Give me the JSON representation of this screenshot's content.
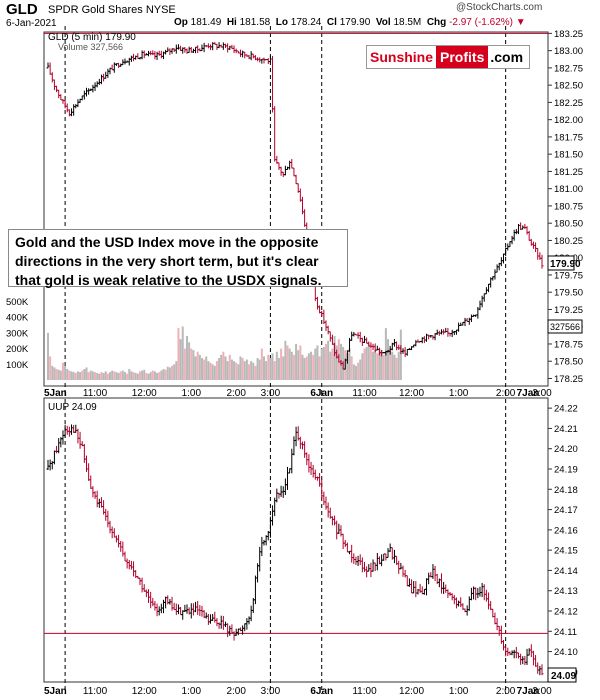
{
  "header": {
    "ticker": "GLD",
    "description": "SPDR Gold Shares NYSE",
    "date": "6-Jan-2021",
    "open_label": "Op",
    "open": "181.49",
    "high_label": "Hi",
    "high": "181.58",
    "low_label": "Lo",
    "low": "178.24",
    "close_label": "Cl",
    "close": "179.90",
    "volume_label": "Vol",
    "volume": "18.5M",
    "change_label": "Chg",
    "change": "-2.97 (-1.62%)",
    "watermark": "@StockCharts.com"
  },
  "brand": {
    "part1": "Sunshine",
    "part2": "Profits",
    "part3": ".com"
  },
  "annotation": {
    "lines": [
      "Gold and the USD Index move in the opposite",
      "directions in the very short term, but it's clear",
      "that gold is weak relative to the USDX signals."
    ]
  },
  "colors": {
    "up": "#000000",
    "down": "#b0002a",
    "vol_up": "#b9b9b9",
    "vol_down": "#f0b0b8",
    "resistance": "#c0002a"
  },
  "chart_data": [
    {
      "type": "bar",
      "title": "GLD (5 min) 179.90",
      "legend": [
        "GLD (5 min) 179.90",
        "Volume 327,566"
      ],
      "x_ticks": [
        "5Jan",
        "11:00",
        "12:00",
        "1:00",
        "2:00",
        "3:00",
        "6Jan",
        "11:00",
        "12:00",
        "1:00",
        "2:00",
        "3:00",
        "7Jan"
      ],
      "y_ticks": [
        "183.25",
        "183.00",
        "182.75",
        "182.50",
        "182.25",
        "182.00",
        "181.75",
        "181.50",
        "181.25",
        "181.00",
        "180.75",
        "180.50",
        "180.25",
        "180.00",
        "179.75",
        "179.50",
        "179.25",
        "179.00",
        "178.75",
        "178.50",
        "178.25"
      ],
      "ylim": [
        178.17,
        183.27
      ],
      "volume_ticks": [
        "500K",
        "400K",
        "300K",
        "200K",
        "100K"
      ],
      "last_price": "179.90",
      "last_volume": "327566",
      "horizontal_line": 183.25,
      "series": [
        {
          "name": "GLD (5 min) 179.90",
          "path": [
            [
              0,
              182.75
            ],
            [
              3,
              182.5
            ],
            [
              6,
              182.3
            ],
            [
              10,
              182.1
            ],
            [
              15,
              182.3
            ],
            [
              20,
              182.45
            ],
            [
              25,
              182.6
            ],
            [
              30,
              182.75
            ],
            [
              35,
              182.85
            ],
            [
              40,
              182.9
            ],
            [
              45,
              182.95
            ],
            [
              50,
              182.92
            ],
            [
              55,
              182.97
            ],
            [
              60,
              183.05
            ],
            [
              65,
              183.0
            ],
            [
              70,
              183.02
            ],
            [
              75,
              183.08
            ],
            [
              80,
              183.07
            ],
            [
              85,
              183.05
            ],
            [
              90,
              182.96
            ],
            [
              95,
              182.92
            ],
            [
              100,
              182.88
            ],
            [
              104,
              182.85
            ],
            [
              106,
              181.4
            ],
            [
              110,
              181.2
            ],
            [
              113,
              181.4
            ],
            [
              116,
              181.1
            ],
            [
              118,
              180.85
            ],
            [
              121,
              180.3
            ],
            [
              125,
              179.4
            ],
            [
              130,
              179.0
            ],
            [
              135,
              178.55
            ],
            [
              138,
              178.4
            ],
            [
              142,
              178.9
            ],
            [
              147,
              178.8
            ],
            [
              152,
              178.7
            ],
            [
              157,
              178.6
            ],
            [
              162,
              178.75
            ],
            [
              167,
              178.6
            ],
            [
              172,
              178.8
            ],
            [
              177,
              178.85
            ],
            [
              182,
              178.9
            ],
            [
              187,
              178.9
            ],
            [
              192,
              179.0
            ],
            [
              196,
              179.1
            ],
            [
              200,
              179.2
            ],
            [
              204,
              179.5
            ],
            [
              208,
              179.75
            ],
            [
              212,
              179.95
            ],
            [
              216,
              180.25
            ],
            [
              220,
              180.45
            ],
            [
              223,
              180.42
            ],
            [
              226,
              180.2
            ],
            [
              229,
              180.05
            ],
            [
              231,
              179.9
            ]
          ]
        },
        {
          "name": "Volume 327,566",
          "values": [
            300,
            150,
            90,
            80,
            70,
            65,
            60,
            110,
            90,
            70,
            60,
            55,
            50,
            45,
            55,
            50,
            60,
            70,
            80,
            50,
            60,
            55,
            50,
            45,
            40,
            50,
            45,
            55,
            40,
            50,
            60,
            55,
            50,
            45,
            55,
            60,
            50,
            40,
            70,
            55,
            50,
            45,
            40,
            55,
            60,
            65,
            45,
            40,
            50,
            60,
            55,
            45,
            50,
            60,
            70,
            65,
            85,
            80,
            90,
            100,
            120,
            330,
            260,
            340,
            200,
            280,
            240,
            200,
            190,
            150,
            180,
            160,
            140,
            130,
            150,
            120,
            110,
            100,
            90,
            120,
            140,
            160,
            180,
            150,
            120,
            160,
            130,
            120,
            110,
            100,
            150,
            140,
            120,
            130,
            100,
            120,
            110,
            90,
            140,
            130,
            200,
            150,
            120,
            160,
            140,
            170,
            120,
            180,
            140,
            200,
            150,
            250,
            220,
            200,
            180,
            160,
            230,
            190,
            220,
            160,
            140,
            150,
            170,
            180,
            160,
            200,
            220,
            150,
            200,
            210,
            230,
            250,
            180,
            200,
            280,
            220,
            260,
            230,
            210,
            190,
            170,
            200,
            150,
            100,
            90,
            110,
            130,
            170,
            200,
            210,
            230,
            200,
            180,
            190,
            170,
            200,
            190,
            160,
            330,
            260,
            200,
            180,
            160,
            140,
            180,
            320
          ]
        }
      ]
    },
    {
      "type": "bar",
      "title": "UUP 24.09",
      "legend": [
        "UUP 24.09"
      ],
      "x_ticks": [
        "5Jan",
        "11:00",
        "12:00",
        "1:00",
        "2:00",
        "3:00",
        "6Jan",
        "11:00",
        "12:00",
        "1:00",
        "2:00",
        "3:00",
        "7Jan"
      ],
      "y_ticks": [
        "24.22",
        "24.21",
        "24.20",
        "24.19",
        "24.18",
        "24.17",
        "24.16",
        "24.15",
        "24.14",
        "24.13",
        "24.12",
        "24.11",
        "24.10",
        "24.09"
      ],
      "ylim": [
        24.085,
        24.225
      ],
      "last_price": "24.09",
      "horizontal_line": 24.109,
      "series": [
        {
          "name": "UUP 24.09",
          "path": [
            [
              0,
              24.19
            ],
            [
              4,
              24.2
            ],
            [
              8,
              24.21
            ],
            [
              12,
              24.21
            ],
            [
              16,
              24.2
            ],
            [
              20,
              24.18
            ],
            [
              25,
              24.17
            ],
            [
              30,
              24.16
            ],
            [
              36,
              24.145
            ],
            [
              40,
              24.14
            ],
            [
              45,
              24.13
            ],
            [
              50,
              24.12
            ],
            [
              55,
              24.125
            ],
            [
              60,
              24.12
            ],
            [
              65,
              24.12
            ],
            [
              70,
              24.12
            ],
            [
              75,
              24.115
            ],
            [
              80,
              24.115
            ],
            [
              85,
              24.11
            ],
            [
              90,
              24.11
            ],
            [
              95,
              24.12
            ],
            [
              99,
              24.15
            ],
            [
              103,
              24.16
            ],
            [
              106,
              24.175
            ],
            [
              110,
              24.18
            ],
            [
              113,
              24.19
            ],
            [
              116,
              24.21
            ],
            [
              119,
              24.2
            ],
            [
              122,
              24.19
            ],
            [
              126,
              24.185
            ],
            [
              130,
              24.17
            ],
            [
              135,
              24.16
            ],
            [
              140,
              24.15
            ],
            [
              145,
              24.145
            ],
            [
              150,
              24.14
            ],
            [
              155,
              24.145
            ],
            [
              160,
              24.15
            ],
            [
              165,
              24.14
            ],
            [
              170,
              24.13
            ],
            [
              175,
              24.13
            ],
            [
              180,
              24.14
            ],
            [
              185,
              24.13
            ],
            [
              190,
              24.125
            ],
            [
              195,
              24.12
            ],
            [
              199,
              24.13
            ],
            [
              203,
              24.13
            ],
            [
              207,
              24.12
            ],
            [
              211,
              24.11
            ],
            [
              214,
              24.1
            ],
            [
              218,
              24.1
            ],
            [
              222,
              24.095
            ],
            [
              226,
              24.1
            ],
            [
              229,
              24.09
            ]
          ]
        }
      ]
    }
  ]
}
